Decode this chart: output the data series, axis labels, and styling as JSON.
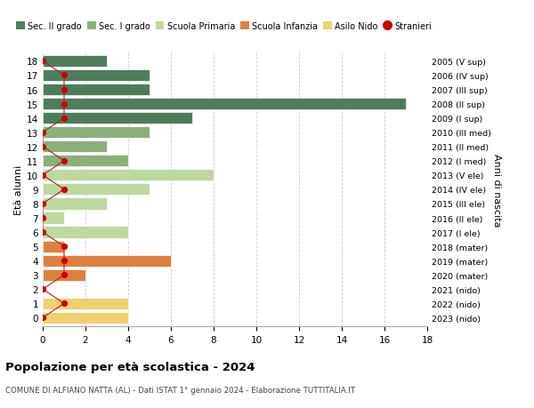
{
  "ages": [
    18,
    17,
    16,
    15,
    14,
    13,
    12,
    11,
    10,
    9,
    8,
    7,
    6,
    5,
    4,
    3,
    2,
    1,
    0
  ],
  "right_labels": [
    "2005 (V sup)",
    "2006 (IV sup)",
    "2007 (III sup)",
    "2008 (II sup)",
    "2009 (I sup)",
    "2010 (III med)",
    "2011 (II med)",
    "2012 (I med)",
    "2013 (V ele)",
    "2014 (IV ele)",
    "2015 (III ele)",
    "2016 (II ele)",
    "2017 (I ele)",
    "2018 (mater)",
    "2019 (mater)",
    "2020 (mater)",
    "2021 (nido)",
    "2022 (nido)",
    "2023 (nido)"
  ],
  "bar_values": [
    3,
    5,
    5,
    17,
    7,
    5,
    3,
    4,
    8,
    5,
    3,
    1,
    4,
    1,
    6,
    2,
    0,
    4,
    4
  ],
  "bar_colors": [
    "#4e7d5b",
    "#4e7d5b",
    "#4e7d5b",
    "#4e7d5b",
    "#4e7d5b",
    "#8ab07a",
    "#8ab07a",
    "#8ab07a",
    "#bdd9a0",
    "#bdd9a0",
    "#bdd9a0",
    "#bdd9a0",
    "#bdd9a0",
    "#e07f3e",
    "#e07f3e",
    "#e07F3e",
    "#f0d070",
    "#f0d070",
    "#f0d070"
  ],
  "stranieri_x": [
    0,
    1,
    1,
    1,
    1,
    0,
    0,
    1,
    0,
    1,
    0,
    0,
    0,
    1,
    1,
    1,
    0,
    1,
    0
  ],
  "title": "Popolazione per età scolastica - 2024",
  "subtitle": "COMUNE DI ALFIANO NATTA (AL) - Dati ISTAT 1° gennaio 2024 - Elaborazione TUTTITALIA.IT",
  "ylabel": "Età alunni",
  "right_ylabel": "Anni di nascita",
  "xlim": [
    0,
    18
  ],
  "xticks": [
    0,
    2,
    4,
    6,
    8,
    10,
    12,
    14,
    16,
    18
  ],
  "legend_items": [
    {
      "label": "Sec. II grado",
      "color": "#4e7d5b",
      "type": "patch"
    },
    {
      "label": "Sec. I grado",
      "color": "#8ab07a",
      "type": "patch"
    },
    {
      "label": "Scuola Primaria",
      "color": "#bdd9a0",
      "type": "patch"
    },
    {
      "label": "Scuola Infanzia",
      "color": "#e07f3e",
      "type": "patch"
    },
    {
      "label": "Asilo Nido",
      "color": "#f0d070",
      "type": "patch"
    },
    {
      "label": "Stranieri",
      "color": "#cc0000",
      "type": "dot"
    }
  ],
  "bg_color": "#ffffff",
  "grid_color": "#cccccc",
  "bar_edgecolor": "#ffffff",
  "stranieri_color": "#cc0000",
  "stranieri_linecolor": "#aa2222"
}
